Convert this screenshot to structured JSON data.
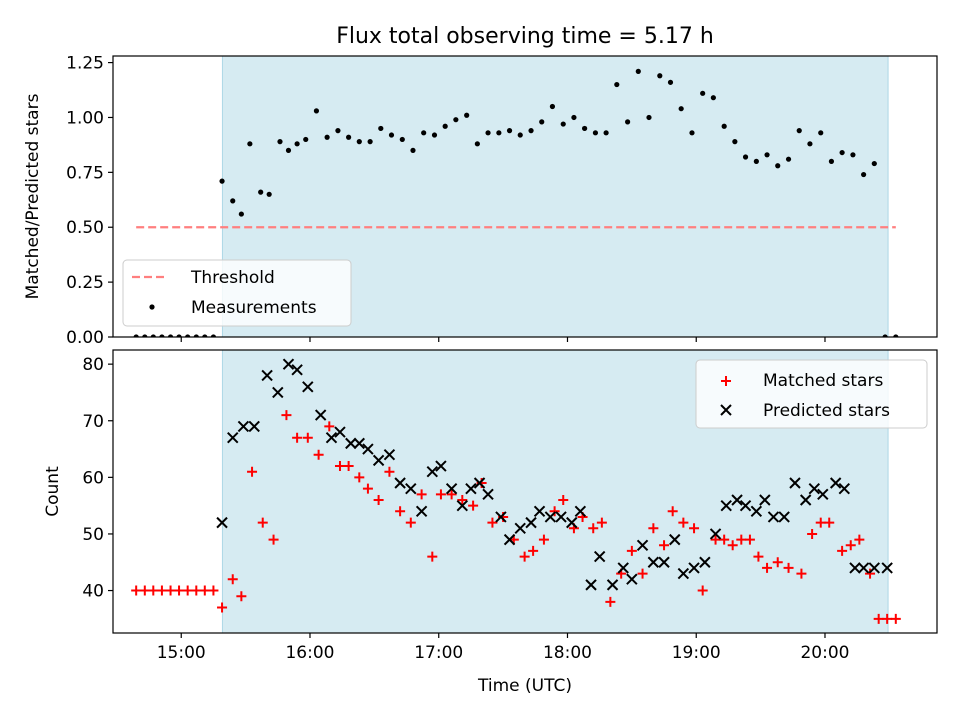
{
  "chart_data": [
    {
      "type": "scatter",
      "title": "Flux total observing time = 5.17 h",
      "xlabel": "",
      "ylabel": "Matched/Predicted stars",
      "xlim": [
        14.47,
        20.87
      ],
      "ylim": [
        0,
        1.28
      ],
      "yticks": [
        0.0,
        0.25,
        0.5,
        0.75,
        1.0,
        1.25
      ],
      "ytick_labels": [
        "0.00",
        "0.25",
        "0.50",
        "0.75",
        "1.00",
        "1.25"
      ],
      "observing_window": [
        15.32,
        20.49
      ],
      "threshold": {
        "label": "Threshold",
        "value": 0.5,
        "x_range": [
          14.65,
          20.55
        ],
        "color": "#ff7f7f"
      },
      "legend_position": "lower-left",
      "series": [
        {
          "name": "Measurements",
          "color": "#000000",
          "x": [
            14.65,
            14.717,
            14.783,
            14.85,
            14.917,
            14.983,
            15.05,
            15.117,
            15.183,
            15.25,
            15.317,
            15.4,
            15.467,
            15.533,
            15.617,
            15.683,
            15.767,
            15.833,
            15.9,
            15.967,
            16.05,
            16.133,
            16.217,
            16.3,
            16.383,
            16.467,
            16.55,
            16.633,
            16.717,
            16.8,
            16.883,
            16.967,
            17.05,
            17.133,
            17.217,
            17.3,
            17.383,
            17.467,
            17.55,
            17.633,
            17.717,
            17.8,
            17.883,
            17.967,
            18.05,
            18.133,
            18.217,
            18.3,
            18.383,
            18.467,
            18.55,
            18.633,
            18.717,
            18.8,
            18.883,
            18.967,
            19.05,
            19.133,
            19.217,
            19.3,
            19.383,
            19.467,
            19.55,
            19.633,
            19.717,
            19.8,
            19.883,
            19.967,
            20.05,
            20.133,
            20.217,
            20.3,
            20.383,
            20.467,
            20.55
          ],
          "y": [
            0,
            0,
            0,
            0,
            0,
            0,
            0,
            0,
            0,
            0,
            0.71,
            0.62,
            0.56,
            0.88,
            0.66,
            0.65,
            0.89,
            0.85,
            0.88,
            0.9,
            1.03,
            0.91,
            0.94,
            0.91,
            0.89,
            0.89,
            0.95,
            0.92,
            0.9,
            0.85,
            0.93,
            0.92,
            0.96,
            0.99,
            1.01,
            0.88,
            0.93,
            0.93,
            0.94,
            0.92,
            0.94,
            0.98,
            1.05,
            0.97,
            1.0,
            0.95,
            0.93,
            0.93,
            1.15,
            0.98,
            1.21,
            1.0,
            1.19,
            1.16,
            1.04,
            0.93,
            1.11,
            1.09,
            0.96,
            0.89,
            0.82,
            0.8,
            0.83,
            0.78,
            0.81,
            0.94,
            0.88,
            0.93,
            0.8,
            0.84,
            0.83,
            0.74,
            0.79,
            0.0,
            0.0
          ]
        }
      ]
    },
    {
      "type": "scatter",
      "title": "",
      "xlabel": "Time (UTC)",
      "ylabel": "Count",
      "xlim": [
        14.47,
        20.87
      ],
      "ylim": [
        32.5,
        82.5
      ],
      "yticks": [
        40,
        50,
        60,
        70,
        80
      ],
      "ytick_labels": [
        "40",
        "50",
        "60",
        "70",
        "80"
      ],
      "xticks": [
        15,
        16,
        17,
        18,
        19,
        20
      ],
      "xtick_labels": [
        "15:00",
        "16:00",
        "17:00",
        "18:00",
        "19:00",
        "20:00"
      ],
      "observing_window": [
        15.32,
        20.49
      ],
      "legend_position": "upper-right",
      "series": [
        {
          "name": "Matched stars",
          "color": "#ff0000",
          "marker": "plus",
          "x": [
            14.65,
            14.717,
            14.783,
            14.85,
            14.917,
            14.983,
            15.05,
            15.117,
            15.183,
            15.25,
            15.317,
            15.4,
            15.467,
            15.55,
            15.633,
            15.717,
            15.817,
            15.9,
            15.983,
            16.067,
            16.15,
            16.233,
            16.3,
            16.383,
            16.45,
            16.533,
            16.617,
            16.7,
            16.783,
            16.867,
            16.95,
            17.017,
            17.1,
            17.183,
            17.267,
            17.333,
            17.417,
            17.5,
            17.583,
            17.667,
            17.733,
            17.817,
            17.9,
            17.967,
            18.05,
            18.117,
            18.2,
            18.267,
            18.333,
            18.417,
            18.5,
            18.583,
            18.667,
            18.75,
            18.817,
            18.9,
            18.983,
            19.05,
            19.15,
            19.217,
            19.283,
            19.35,
            19.417,
            19.483,
            19.55,
            19.633,
            19.717,
            19.817,
            19.9,
            19.967,
            20.033,
            20.133,
            20.2,
            20.267,
            20.35,
            20.417,
            20.483,
            20.55
          ],
          "y": [
            40,
            40,
            40,
            40,
            40,
            40,
            40,
            40,
            40,
            40,
            37,
            42,
            39,
            61,
            52,
            49,
            71,
            67,
            67,
            64,
            69,
            62,
            62,
            60,
            58,
            56,
            61,
            54,
            52,
            57,
            46,
            57,
            57,
            56,
            55,
            59,
            52,
            53,
            49,
            46,
            47,
            49,
            54,
            56,
            51,
            53,
            51,
            52,
            38,
            43,
            47,
            43,
            51,
            48,
            54,
            52,
            51,
            40,
            49,
            49,
            48,
            49,
            49,
            46,
            44,
            45,
            44,
            43,
            50,
            52,
            52,
            47,
            48,
            49,
            43,
            35,
            35,
            35
          ]
        },
        {
          "name": "Predicted stars",
          "color": "#000000",
          "marker": "cross",
          "x": [
            15.317,
            15.4,
            15.483,
            15.567,
            15.667,
            15.75,
            15.833,
            15.9,
            15.983,
            16.083,
            16.167,
            16.233,
            16.317,
            16.383,
            16.45,
            16.533,
            16.617,
            16.7,
            16.783,
            16.867,
            16.95,
            17.017,
            17.1,
            17.183,
            17.25,
            17.317,
            17.383,
            17.483,
            17.55,
            17.633,
            17.717,
            17.783,
            17.867,
            17.95,
            18.033,
            18.1,
            18.183,
            18.25,
            18.35,
            18.433,
            18.5,
            18.583,
            18.667,
            18.75,
            18.833,
            18.9,
            18.983,
            19.067,
            19.15,
            19.233,
            19.317,
            19.383,
            19.467,
            19.533,
            19.6,
            19.683,
            19.767,
            19.85,
            19.917,
            19.983,
            20.083,
            20.15,
            20.233,
            20.3,
            20.383,
            20.483
          ],
          "y": [
            52,
            67,
            69,
            69,
            78,
            75,
            80,
            79,
            76,
            71,
            67,
            68,
            66,
            66,
            65,
            63,
            64,
            59,
            58,
            54,
            61,
            62,
            58,
            55,
            58,
            59,
            57,
            53,
            49,
            51,
            52,
            54,
            53,
            53,
            52,
            54,
            41,
            46,
            41,
            44,
            42,
            48,
            45,
            45,
            49,
            43,
            44,
            45,
            50,
            55,
            56,
            55,
            54,
            56,
            53,
            53,
            59,
            56,
            58,
            57,
            59,
            58,
            44,
            44,
            44,
            44
          ]
        }
      ]
    }
  ]
}
